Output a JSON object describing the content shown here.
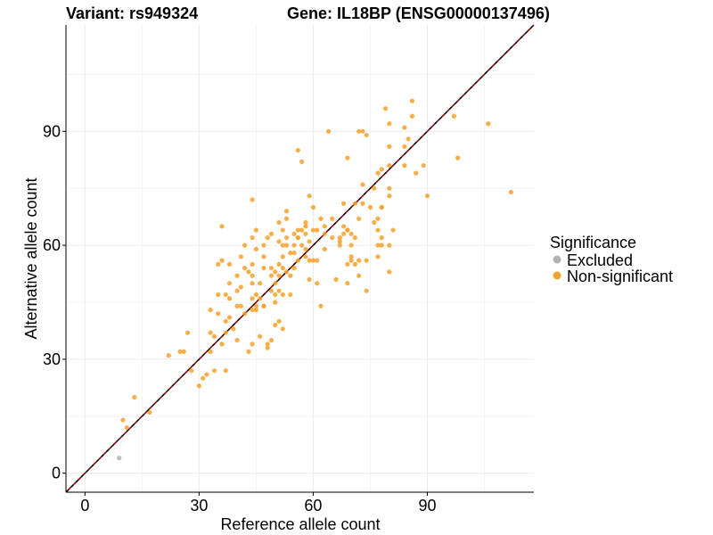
{
  "header": {
    "variant_label": "Variant: rs949324",
    "gene_label": "Gene: IL18BP (ENSG00000137496)"
  },
  "chart_data": {
    "type": "scatter",
    "xlabel": "Reference allele count",
    "ylabel": "Alternative allele count",
    "xlim": [
      -5,
      118
    ],
    "ylim": [
      -5,
      118
    ],
    "xticks": [
      0,
      30,
      60,
      90
    ],
    "yticks": [
      0,
      30,
      60,
      90
    ],
    "grid": true,
    "reference_line": {
      "slope": 1,
      "intercept": 0,
      "style": "dashed",
      "colors": [
        "#000000",
        "#8b0000"
      ]
    },
    "legend": {
      "title": "Significance",
      "position": "right",
      "entries": [
        {
          "label": "Excluded",
          "color": "#b3b3b3"
        },
        {
          "label": "Non-significant",
          "color": "#f7a12b"
        }
      ]
    },
    "series": [
      {
        "name": "Excluded",
        "color": "#b3b3b3",
        "points": [
          [
            9,
            4
          ]
        ]
      },
      {
        "name": "Non-significant",
        "color": "#f7a12b",
        "points": [
          [
            10,
            14
          ],
          [
            11,
            12
          ],
          [
            13,
            20
          ],
          [
            17,
            16
          ],
          [
            22,
            31
          ],
          [
            25,
            32
          ],
          [
            26,
            32
          ],
          [
            27,
            37
          ],
          [
            28,
            27
          ],
          [
            30,
            23
          ],
          [
            31,
            25
          ],
          [
            32,
            26
          ],
          [
            33,
            37
          ],
          [
            33,
            32
          ],
          [
            33,
            43
          ],
          [
            34,
            27
          ],
          [
            34,
            36
          ],
          [
            35,
            42
          ],
          [
            35,
            47
          ],
          [
            35,
            55
          ],
          [
            36,
            56
          ],
          [
            36,
            65
          ],
          [
            36,
            34
          ],
          [
            37,
            37
          ],
          [
            37,
            40
          ],
          [
            37,
            27
          ],
          [
            37,
            47
          ],
          [
            38,
            41
          ],
          [
            38,
            46
          ],
          [
            38,
            55
          ],
          [
            38,
            50
          ],
          [
            39,
            38
          ],
          [
            40,
            35
          ],
          [
            40,
            44
          ],
          [
            40,
            48
          ],
          [
            40,
            52
          ],
          [
            41,
            49
          ],
          [
            41,
            57
          ],
          [
            41,
            44
          ],
          [
            42,
            42
          ],
          [
            42,
            60
          ],
          [
            42,
            54
          ],
          [
            43,
            53
          ],
          [
            43,
            32
          ],
          [
            44,
            34
          ],
          [
            44,
            43
          ],
          [
            44,
            46
          ],
          [
            44,
            50
          ],
          [
            44,
            52
          ],
          [
            44,
            55
          ],
          [
            44,
            72
          ],
          [
            44,
            62
          ],
          [
            45,
            44
          ],
          [
            45,
            47
          ],
          [
            45,
            59
          ],
          [
            45,
            64
          ],
          [
            45,
            43
          ],
          [
            46,
            36
          ],
          [
            46,
            46
          ],
          [
            46,
            50
          ],
          [
            47,
            44
          ],
          [
            47,
            44
          ],
          [
            47,
            54
          ],
          [
            47,
            57
          ],
          [
            47,
            60
          ],
          [
            48,
            34
          ],
          [
            48,
            33
          ],
          [
            48,
            62
          ],
          [
            49,
            35
          ],
          [
            49,
            48
          ],
          [
            49,
            54
          ],
          [
            49,
            63
          ],
          [
            49,
            52
          ],
          [
            50,
            39
          ],
          [
            50,
            47
          ],
          [
            50,
            50
          ],
          [
            50,
            53
          ],
          [
            50,
            45
          ],
          [
            51,
            40
          ],
          [
            51,
            48
          ],
          [
            51,
            52
          ],
          [
            51,
            55
          ],
          [
            51,
            61
          ],
          [
            51,
            66
          ],
          [
            52,
            38
          ],
          [
            52,
            47
          ],
          [
            52,
            54
          ],
          [
            52,
            57
          ],
          [
            52,
            60
          ],
          [
            52,
            64
          ],
          [
            53,
            60
          ],
          [
            53,
            62
          ],
          [
            53,
            67
          ],
          [
            53,
            69
          ],
          [
            53,
            53
          ],
          [
            54,
            47
          ],
          [
            54,
            52
          ],
          [
            54,
            58
          ],
          [
            55,
            54
          ],
          [
            55,
            60
          ],
          [
            55,
            63
          ],
          [
            55,
            58
          ],
          [
            56,
            56
          ],
          [
            56,
            62
          ],
          [
            56,
            64
          ],
          [
            56,
            85
          ],
          [
            56,
            62
          ],
          [
            57,
            60
          ],
          [
            57,
            64
          ],
          [
            57,
            82
          ],
          [
            58,
            57
          ],
          [
            58,
            59
          ],
          [
            58,
            63
          ],
          [
            58,
            66
          ],
          [
            58,
            65
          ],
          [
            59,
            61
          ],
          [
            59,
            73
          ],
          [
            59,
            51
          ],
          [
            59,
            56
          ],
          [
            60,
            64
          ],
          [
            60,
            70
          ],
          [
            60,
            56
          ],
          [
            61,
            50
          ],
          [
            61,
            56
          ],
          [
            61,
            64
          ],
          [
            62,
            44
          ],
          [
            62,
            67
          ],
          [
            63,
            59
          ],
          [
            63,
            63
          ],
          [
            63,
            65
          ],
          [
            64,
            90
          ],
          [
            65,
            62
          ],
          [
            65,
            67
          ],
          [
            66,
            51
          ],
          [
            67,
            61
          ],
          [
            67,
            62
          ],
          [
            67,
            60
          ],
          [
            68,
            65
          ],
          [
            68,
            63
          ],
          [
            68,
            71
          ],
          [
            69,
            50
          ],
          [
            69,
            55
          ],
          [
            69,
            64
          ],
          [
            69,
            83
          ],
          [
            69,
            64
          ],
          [
            70,
            56
          ],
          [
            70,
            60
          ],
          [
            70,
            57
          ],
          [
            70,
            63
          ],
          [
            71,
            62
          ],
          [
            71,
            55
          ],
          [
            71,
            71
          ],
          [
            72,
            52
          ],
          [
            72,
            56
          ],
          [
            72,
            90
          ],
          [
            72,
            67
          ],
          [
            73,
            90
          ],
          [
            73,
            71
          ],
          [
            73,
            76
          ],
          [
            74,
            48
          ],
          [
            74,
            56
          ],
          [
            74,
            89
          ],
          [
            75,
            70
          ],
          [
            76,
            66
          ],
          [
            76,
            75
          ],
          [
            77,
            57
          ],
          [
            77,
            60
          ],
          [
            77,
            64
          ],
          [
            77,
            67
          ],
          [
            77,
            79
          ],
          [
            78,
            60
          ],
          [
            78,
            62
          ],
          [
            78,
            70
          ],
          [
            78,
            80
          ],
          [
            78,
            70
          ],
          [
            79,
            96
          ],
          [
            80,
            53
          ],
          [
            80,
            60
          ],
          [
            80,
            73
          ],
          [
            80,
            75
          ],
          [
            80,
            81
          ],
          [
            80,
            86
          ],
          [
            80,
            92
          ],
          [
            81,
            64
          ],
          [
            84,
            81
          ],
          [
            84,
            86
          ],
          [
            84,
            91
          ],
          [
            85,
            88
          ],
          [
            86,
            94
          ],
          [
            86,
            98
          ],
          [
            87,
            79
          ],
          [
            89,
            81
          ],
          [
            90,
            73
          ],
          [
            97,
            94
          ],
          [
            98,
            83
          ],
          [
            106,
            92
          ],
          [
            112,
            74
          ]
        ]
      }
    ]
  }
}
